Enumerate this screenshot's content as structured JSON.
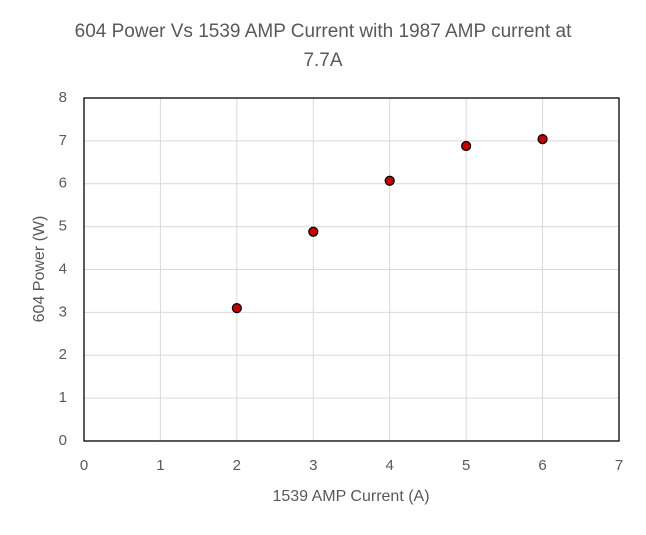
{
  "chart_data": {
    "type": "scatter",
    "title": "604 Power Vs 1539 AMP Current with 1987 AMP current at 7.7A",
    "x_label": "1539 AMP Current (A)",
    "y_label": "604 Power (W)",
    "series": [
      {
        "name": "604 Power",
        "color": "#c00000",
        "x": [
          2,
          3,
          4,
          5,
          6
        ],
        "values": [
          3.1,
          4.88,
          6.07,
          6.88,
          7.04
        ]
      }
    ],
    "xlim": [
      0,
      7
    ],
    "xticks": [
      0,
      1,
      2,
      3,
      4,
      5,
      6,
      7
    ],
    "ylim": [
      0,
      8
    ],
    "yticks": [
      0,
      1,
      2,
      3,
      4,
      5,
      6,
      7,
      8
    ],
    "grid": true
  }
}
